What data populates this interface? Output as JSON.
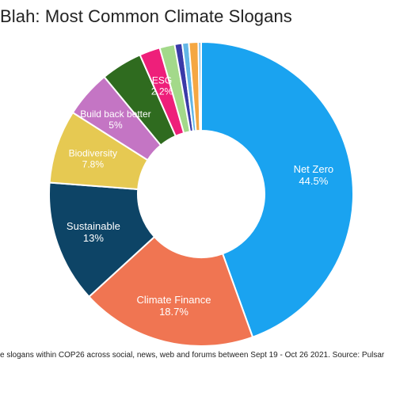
{
  "title_visible": "Blah: Most Common Climate Slogans",
  "footer_visible": "e slogans within COP26 across social, news, web and forums between Sept 19 - Oct 26 2021. Source: Pulsar",
  "chart_data": {
    "type": "pie",
    "title": "Blah: Most Common Climate Slogans",
    "donut": true,
    "slices": [
      {
        "label": "Net Zero",
        "value": 44.5,
        "value_label": "44.5%",
        "color": "#1aa3f0",
        "text_color": "#ffffff"
      },
      {
        "label": "Climate Finance",
        "value": 18.7,
        "value_label": "18.7%",
        "color": "#f07552",
        "text_color": "#ffffff"
      },
      {
        "label": "Sustainable",
        "value": 13,
        "value_label": "13%",
        "color": "#0d4466",
        "text_color": "#ffffff"
      },
      {
        "label": "Biodiversity",
        "value": 7.8,
        "value_label": "7.8%",
        "color": "#e6c952",
        "text_color": "#ffffff"
      },
      {
        "label": "Build back better",
        "value": 5,
        "value_label": "5%",
        "color": "#c475c4",
        "text_color": "#ffffff"
      },
      {
        "label": "",
        "value": 4.4,
        "value_label": "",
        "color": "#2f6b1f",
        "text_color": "#ffffff"
      },
      {
        "label": "ESG",
        "value": 2.2,
        "value_label": "2.2%",
        "color": "#ee1f7a",
        "text_color": "#ffffff"
      },
      {
        "label": "",
        "value": 1.6,
        "value_label": "",
        "color": "#a3d98a",
        "text_color": "#ffffff"
      },
      {
        "label": "",
        "value": 0.8,
        "value_label": "",
        "color": "#3a3aa8",
        "text_color": "#ffffff"
      },
      {
        "label": "",
        "value": 0.7,
        "value_label": "",
        "color": "#62b6e6",
        "text_color": "#ffffff"
      },
      {
        "label": "",
        "value": 1.0,
        "value_label": "",
        "color": "#f5a742",
        "text_color": "#ffffff"
      },
      {
        "label": "",
        "value": 0.3,
        "value_label": "",
        "color": "#7ab8e0",
        "text_color": "#ffffff"
      }
    ]
  }
}
